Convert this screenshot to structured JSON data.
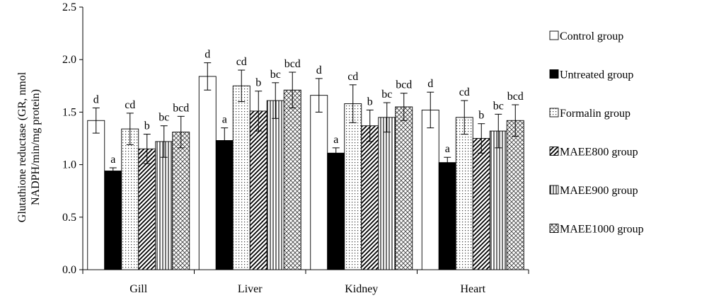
{
  "chart_data": {
    "type": "bar",
    "ylabel_line1": "Glutathione reductase (GR, nmol",
    "ylabel_line2": "NADPH/min/mg protein)",
    "ylim": [
      0,
      2.5
    ],
    "yticks": [
      "0.0",
      "0.5",
      "1.0",
      "1.5",
      "2.0",
      "2.5"
    ],
    "categories": [
      "Gill",
      "Liver",
      "Kidney",
      "Heart"
    ],
    "legend_position": "right",
    "grid": false,
    "series": [
      {
        "name": "Control group",
        "pattern": "white",
        "values": [
          1.42,
          1.84,
          1.66,
          1.52
        ],
        "errors": [
          0.12,
          0.13,
          0.16,
          0.17
        ],
        "labels": [
          "d",
          "d",
          "d",
          "d"
        ]
      },
      {
        "name": "Untreated group",
        "pattern": "black",
        "values": [
          0.94,
          1.23,
          1.11,
          1.02
        ],
        "errors": [
          0.03,
          0.12,
          0.05,
          0.05
        ],
        "labels": [
          "a",
          "a",
          "a",
          "a"
        ]
      },
      {
        "name": "Formalin group",
        "pattern": "dots",
        "values": [
          1.34,
          1.75,
          1.58,
          1.45
        ],
        "errors": [
          0.15,
          0.15,
          0.18,
          0.16
        ],
        "labels": [
          "cd",
          "cd",
          "cd",
          "cd"
        ]
      },
      {
        "name": "MAEE800 group",
        "pattern": "diagonal",
        "values": [
          1.15,
          1.51,
          1.37,
          1.25
        ],
        "errors": [
          0.14,
          0.19,
          0.15,
          0.14
        ],
        "labels": [
          "b",
          "b",
          "b",
          "b"
        ]
      },
      {
        "name": "MAEE900 group",
        "pattern": "vertical",
        "values": [
          1.22,
          1.61,
          1.45,
          1.32
        ],
        "errors": [
          0.15,
          0.17,
          0.14,
          0.16
        ],
        "labels": [
          "bc",
          "bc",
          "bc",
          "bc"
        ]
      },
      {
        "name": "MAEE1000 group",
        "pattern": "cross",
        "values": [
          1.31,
          1.71,
          1.55,
          1.42
        ],
        "errors": [
          0.15,
          0.17,
          0.13,
          0.15
        ],
        "labels": [
          "bcd",
          "bcd",
          "bcd",
          "bcd"
        ]
      }
    ]
  }
}
